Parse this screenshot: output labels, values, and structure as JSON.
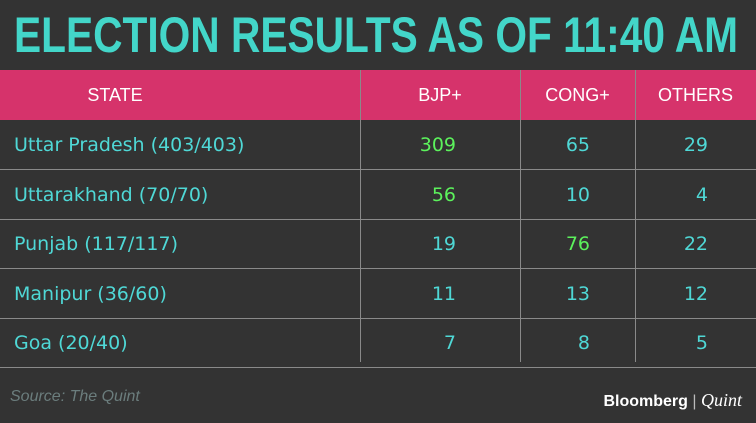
{
  "header": {
    "title": "ELECTION RESULTS AS OF 11:40 AM"
  },
  "table": {
    "columns": [
      "STATE",
      "BJP+",
      "CONG+",
      "OTHERS"
    ],
    "rows": [
      [
        "Uttar Pradesh (403/403)",
        309,
        65,
        29
      ],
      [
        "Uttarakhand (70/70)",
        56,
        10,
        4
      ],
      [
        "Punjab (117/117)",
        19,
        76,
        22
      ],
      [
        "Manipur (36/60)",
        11,
        13,
        12
      ],
      [
        "Goa (20/40)",
        7,
        8,
        5
      ]
    ],
    "highlight": [
      1,
      1,
      2,
      null,
      null
    ],
    "text_color": "#4fd8d6",
    "highlight_color": "#5cf25c"
  },
  "footer": {
    "source": "Source: The Quint",
    "logo_left": "Bloomberg",
    "logo_right": "Quint"
  }
}
